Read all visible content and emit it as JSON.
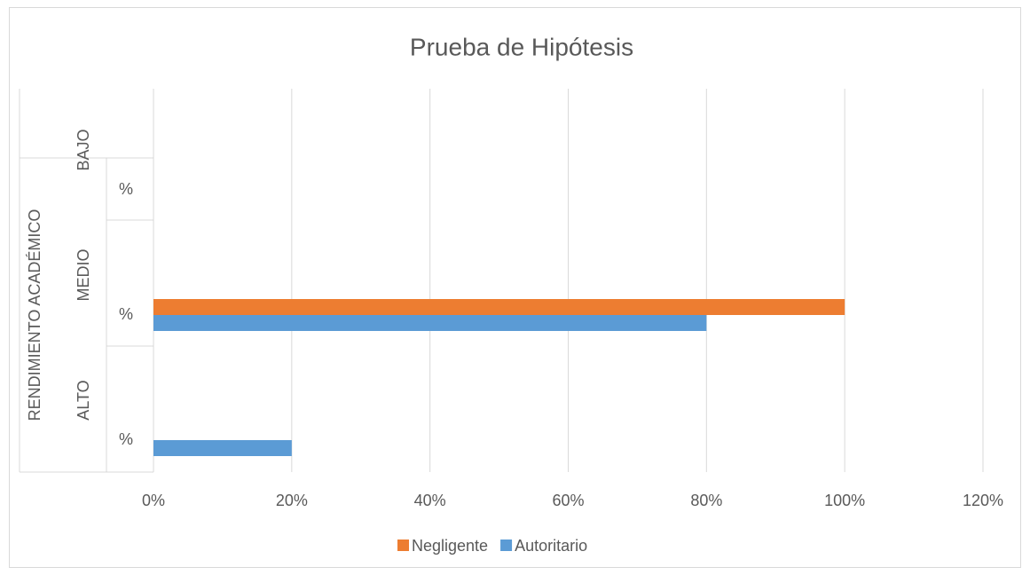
{
  "chart_data": {
    "type": "hbar",
    "title": "Prueba de Hipótesis",
    "group_label": "RENDIMIENTO ACADÉMICO",
    "categories": [
      "ALTO",
      "MEDIO",
      "BAJO"
    ],
    "subcategories": [
      "%",
      "%",
      "%"
    ],
    "series": [
      {
        "name": "Negligente",
        "color": "#ed7d31",
        "values": [
          0,
          100,
          0
        ]
      },
      {
        "name": "Autoritario",
        "color": "#5b9bd5",
        "values": [
          20,
          80,
          0
        ]
      }
    ],
    "xlim": [
      0,
      120
    ],
    "xticks": [
      {
        "value": 0,
        "label": "0%"
      },
      {
        "value": 20,
        "label": "20%"
      },
      {
        "value": 40,
        "label": "40%"
      },
      {
        "value": 60,
        "label": "60%"
      },
      {
        "value": 80,
        "label": "80%"
      },
      {
        "value": 100,
        "label": "100%"
      },
      {
        "value": 120,
        "label": "120%"
      }
    ],
    "grid": true,
    "legend": "bottom"
  }
}
